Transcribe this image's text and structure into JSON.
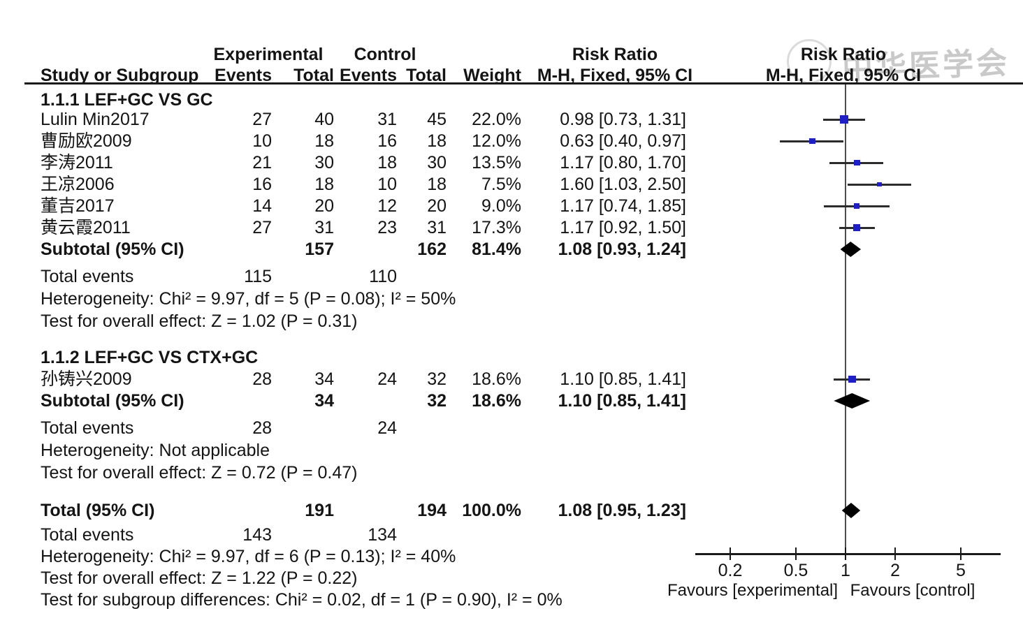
{
  "header": {
    "col_experimental": "Experimental",
    "col_control": "Control",
    "col_risk_ratio_text": "Risk Ratio",
    "col_risk_ratio_plot": "Risk Ratio",
    "col_study": "Study or Subgroup",
    "col_events": "Events",
    "col_total": "Total",
    "col_events2": "Events",
    "col_total2": "Total",
    "col_weight": "Weight",
    "col_mh_text": "M-H, Fixed, 95% CI",
    "col_mh_plot": "M-H, Fixed, 95% CI"
  },
  "watermark": {
    "text": "中华医学会"
  },
  "chart_data": {
    "type": "forest",
    "effect_measure": "Risk Ratio",
    "method": "M-H, Fixed, 95% CI",
    "x_scale": "log",
    "x_ticks": [
      "0.2",
      "0.5",
      "1",
      "2",
      "5"
    ],
    "x_tick_values": [
      0.2,
      0.5,
      1,
      2,
      5
    ],
    "axis_range": [
      0.12,
      8.6
    ],
    "favours_left": "Favours [experimental]",
    "favours_right": "Favours [control]",
    "groups": [
      {
        "label": "1.1.1 LEF+GC VS GC",
        "studies": [
          {
            "name": "Lulin Min2017",
            "exp_events": "27",
            "exp_total": "40",
            "ctl_events": "31",
            "ctl_total": "45",
            "weight": 22.0,
            "weight_label": "22.0%",
            "rr": 0.98,
            "ci_low": 0.73,
            "ci_high": 1.31,
            "rr_label": "0.98 [0.73, 1.31]"
          },
          {
            "name": "曹励欧2009",
            "exp_events": "10",
            "exp_total": "18",
            "ctl_events": "16",
            "ctl_total": "18",
            "weight": 12.0,
            "weight_label": "12.0%",
            "rr": 0.63,
            "ci_low": 0.4,
            "ci_high": 0.97,
            "rr_label": "0.63 [0.40, 0.97]"
          },
          {
            "name": "李涛2011",
            "exp_events": "21",
            "exp_total": "30",
            "ctl_events": "18",
            "ctl_total": "30",
            "weight": 13.5,
            "weight_label": "13.5%",
            "rr": 1.17,
            "ci_low": 0.8,
            "ci_high": 1.7,
            "rr_label": "1.17 [0.80, 1.70]"
          },
          {
            "name": "王凉2006",
            "exp_events": "16",
            "exp_total": "18",
            "ctl_events": "10",
            "ctl_total": "18",
            "weight": 7.5,
            "weight_label": "7.5%",
            "rr": 1.6,
            "ci_low": 1.03,
            "ci_high": 2.5,
            "rr_label": "1.60 [1.03, 2.50]"
          },
          {
            "name": "董吉2017",
            "exp_events": "14",
            "exp_total": "20",
            "ctl_events": "12",
            "ctl_total": "20",
            "weight": 9.0,
            "weight_label": "9.0%",
            "rr": 1.17,
            "ci_low": 0.74,
            "ci_high": 1.85,
            "rr_label": "1.17 [0.74, 1.85]"
          },
          {
            "name": "黄云霞2011",
            "exp_events": "27",
            "exp_total": "31",
            "ctl_events": "23",
            "ctl_total": "31",
            "weight": 17.3,
            "weight_label": "17.3%",
            "rr": 1.17,
            "ci_low": 0.92,
            "ci_high": 1.5,
            "rr_label": "1.17 [0.92, 1.50]"
          }
        ],
        "subtotal": {
          "label": "Subtotal (95% CI)",
          "exp_total": "157",
          "ctl_total": "162",
          "weight_label": "81.4%",
          "rr": 1.08,
          "ci_low": 0.93,
          "ci_high": 1.24,
          "rr_label": "1.08 [0.93, 1.24]"
        },
        "total_events": {
          "label": "Total events",
          "exp": "115",
          "ctl": "110"
        },
        "heterogeneity": "Heterogeneity: Chi² = 9.97, df = 5 (P = 0.08); I² = 50%",
        "overall_effect": "Test for overall effect: Z = 1.02 (P = 0.31)"
      },
      {
        "label": "1.1.2 LEF+GC VS CTX+GC",
        "studies": [
          {
            "name": "孙铸兴2009",
            "exp_events": "28",
            "exp_total": "34",
            "ctl_events": "24",
            "ctl_total": "32",
            "weight": 18.6,
            "weight_label": "18.6%",
            "rr": 1.1,
            "ci_low": 0.85,
            "ci_high": 1.41,
            "rr_label": "1.10 [0.85, 1.41]"
          }
        ],
        "subtotal": {
          "label": "Subtotal (95% CI)",
          "exp_total": "34",
          "ctl_total": "32",
          "weight_label": "18.6%",
          "rr": 1.1,
          "ci_low": 0.85,
          "ci_high": 1.41,
          "rr_label": "1.10 [0.85, 1.41]"
        },
        "total_events": {
          "label": "Total events",
          "exp": "28",
          "ctl": "24"
        },
        "heterogeneity": "Heterogeneity: Not applicable",
        "overall_effect": "Test for overall effect: Z = 0.72 (P = 0.47)"
      }
    ],
    "total": {
      "label": "Total (95% CI)",
      "exp_total": "191",
      "ctl_total": "194",
      "weight_label": "100.0%",
      "rr": 1.08,
      "ci_low": 0.95,
      "ci_high": 1.23,
      "rr_label": "1.08 [0.95, 1.23]",
      "total_events": {
        "label": "Total events",
        "exp": "143",
        "ctl": "134"
      },
      "heterogeneity": "Heterogeneity: Chi² = 9.97, df = 6 (P = 0.13); I² = 40%",
      "overall_effect": "Test for overall effect: Z = 1.22 (P = 0.22)",
      "subgroup_differences": "Test for subgroup differences: Chi² = 0.02, df = 1 (P = 0.90), I² = 0%"
    }
  },
  "colors": {
    "square": "#1f1fc8",
    "diamond": "#000000",
    "ci_line": "#2b2b2b",
    "axis": "#1a1a1a",
    "text": "#141414",
    "watermark": "#c9c9c9"
  }
}
